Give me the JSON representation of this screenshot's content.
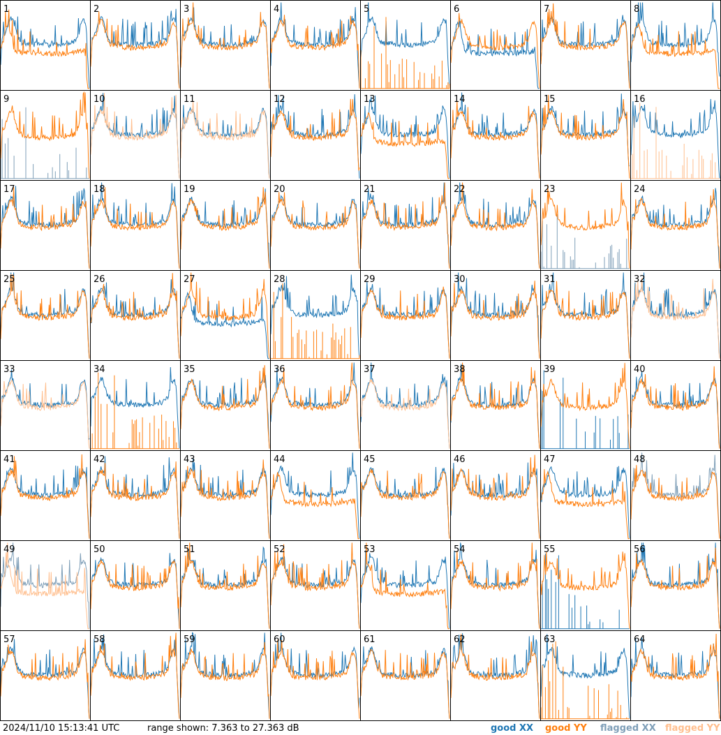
{
  "footer": {
    "timestamp": "2024/11/10 15:13:41 UTC",
    "range": "range shown: 7.363 to 27.363 dB"
  },
  "legend": [
    {
      "key": "good_xx",
      "prefix": "good",
      "pol": "XX",
      "color": "#1f77b4"
    },
    {
      "key": "good_yy",
      "prefix": "good",
      "pol": "YY",
      "color": "#ff7f0e"
    },
    {
      "key": "flagged_xx",
      "prefix": "flagged",
      "pol": "XX",
      "color": "#7f9fb8"
    },
    {
      "key": "flagged_yy",
      "prefix": "flagged",
      "pol": "YY",
      "color": "#ffbf8f"
    }
  ],
  "chart_data": {
    "type": "line",
    "grid_columns": 8,
    "grid_rows": 8,
    "y_range_db": [
      7.363,
      27.363
    ],
    "panel_statuses": [
      {
        "id": "1",
        "xx": "good",
        "yy": "good",
        "shape": "low_yy"
      },
      {
        "id": "2",
        "xx": "good",
        "yy": "good",
        "shape": "normal"
      },
      {
        "id": "3",
        "xx": "good",
        "yy": "good",
        "shape": "normal"
      },
      {
        "id": "4",
        "xx": "good",
        "yy": "good",
        "shape": "normal"
      },
      {
        "id": "5",
        "xx": "good",
        "yy": "good",
        "shape": "spiky_yy"
      },
      {
        "id": "6",
        "xx": "good",
        "yy": "good",
        "shape": "low_xx"
      },
      {
        "id": "7",
        "xx": "good",
        "yy": "good",
        "shape": "normal"
      },
      {
        "id": "8",
        "xx": "good",
        "yy": "good",
        "shape": "low_yy"
      },
      {
        "id": "9",
        "xx": "flagged",
        "yy": "good",
        "shape": "spiky_xx"
      },
      {
        "id": "10",
        "xx": "good",
        "yy": "flagged",
        "shape": "normal"
      },
      {
        "id": "11",
        "xx": "good",
        "yy": "flagged",
        "shape": "normal"
      },
      {
        "id": "12",
        "xx": "good",
        "yy": "good",
        "shape": "normal"
      },
      {
        "id": "13",
        "xx": "good",
        "yy": "good",
        "shape": "low_yy"
      },
      {
        "id": "14",
        "xx": "good",
        "yy": "good",
        "shape": "normal"
      },
      {
        "id": "15",
        "xx": "good",
        "yy": "good",
        "shape": "normal"
      },
      {
        "id": "16",
        "xx": "good",
        "yy": "flagged",
        "shape": "spiky_yy"
      },
      {
        "id": "17",
        "xx": "good",
        "yy": "good",
        "shape": "normal"
      },
      {
        "id": "18",
        "xx": "good",
        "yy": "good",
        "shape": "normal"
      },
      {
        "id": "19",
        "xx": "good",
        "yy": "good",
        "shape": "normal"
      },
      {
        "id": "20",
        "xx": "good",
        "yy": "good",
        "shape": "normal"
      },
      {
        "id": "21",
        "xx": "good",
        "yy": "good",
        "shape": "normal"
      },
      {
        "id": "22",
        "xx": "good",
        "yy": "good",
        "shape": "normal"
      },
      {
        "id": "23",
        "xx": "flagged",
        "yy": "good",
        "shape": "spiky_xx"
      },
      {
        "id": "24",
        "xx": "good",
        "yy": "good",
        "shape": "normal"
      },
      {
        "id": "25",
        "xx": "good",
        "yy": "good",
        "shape": "normal"
      },
      {
        "id": "26",
        "xx": "good",
        "yy": "good",
        "shape": "normal"
      },
      {
        "id": "27",
        "xx": "good",
        "yy": "good",
        "shape": "low_xx"
      },
      {
        "id": "28",
        "xx": "good",
        "yy": "good",
        "shape": "spiky_yy"
      },
      {
        "id": "29",
        "xx": "good",
        "yy": "good",
        "shape": "normal"
      },
      {
        "id": "30",
        "xx": "good",
        "yy": "good",
        "shape": "normal"
      },
      {
        "id": "31",
        "xx": "good",
        "yy": "good",
        "shape": "normal"
      },
      {
        "id": "32",
        "xx": "good",
        "yy": "flagged",
        "shape": "normal"
      },
      {
        "id": "33",
        "xx": "good",
        "yy": "flagged",
        "shape": "normal"
      },
      {
        "id": "34",
        "xx": "good",
        "yy": "good",
        "shape": "spiky_yy"
      },
      {
        "id": "35",
        "xx": "good",
        "yy": "good",
        "shape": "normal"
      },
      {
        "id": "36",
        "xx": "good",
        "yy": "good",
        "shape": "normal"
      },
      {
        "id": "37",
        "xx": "good",
        "yy": "flagged",
        "shape": "normal"
      },
      {
        "id": "38",
        "xx": "good",
        "yy": "good",
        "shape": "normal"
      },
      {
        "id": "39",
        "xx": "good",
        "yy": "good",
        "shape": "spiky_xx"
      },
      {
        "id": "40",
        "xx": "good",
        "yy": "good",
        "shape": "normal"
      },
      {
        "id": "41",
        "xx": "good",
        "yy": "good",
        "shape": "normal"
      },
      {
        "id": "42",
        "xx": "good",
        "yy": "good",
        "shape": "normal"
      },
      {
        "id": "43",
        "xx": "good",
        "yy": "good",
        "shape": "normal"
      },
      {
        "id": "44",
        "xx": "good",
        "yy": "good",
        "shape": "low_yy"
      },
      {
        "id": "45",
        "xx": "good",
        "yy": "good",
        "shape": "normal"
      },
      {
        "id": "46",
        "xx": "good",
        "yy": "good",
        "shape": "normal"
      },
      {
        "id": "47",
        "xx": "good",
        "yy": "good",
        "shape": "low_yy"
      },
      {
        "id": "48",
        "xx": "flagged",
        "yy": "good",
        "shape": "normal"
      },
      {
        "id": "49",
        "xx": "flagged",
        "yy": "flagged",
        "shape": "low_yy"
      },
      {
        "id": "50",
        "xx": "good",
        "yy": "good",
        "shape": "normal"
      },
      {
        "id": "51",
        "xx": "good",
        "yy": "good",
        "shape": "normal"
      },
      {
        "id": "52",
        "xx": "good",
        "yy": "good",
        "shape": "normal"
      },
      {
        "id": "53",
        "xx": "good",
        "yy": "good",
        "shape": "low_yy"
      },
      {
        "id": "54",
        "xx": "good",
        "yy": "good",
        "shape": "normal"
      },
      {
        "id": "55",
        "xx": "good",
        "yy": "good",
        "shape": "spiky_xx"
      },
      {
        "id": "56",
        "xx": "good",
        "yy": "good",
        "shape": "normal"
      },
      {
        "id": "57",
        "xx": "good",
        "yy": "good",
        "shape": "normal"
      },
      {
        "id": "58",
        "xx": "good",
        "yy": "good",
        "shape": "normal"
      },
      {
        "id": "59",
        "xx": "good",
        "yy": "good",
        "shape": "normal"
      },
      {
        "id": "60",
        "xx": "good",
        "yy": "good",
        "shape": "normal"
      },
      {
        "id": "61",
        "xx": "good",
        "yy": "good",
        "shape": "normal"
      },
      {
        "id": "62",
        "xx": "good",
        "yy": "good",
        "shape": "normal"
      },
      {
        "id": "63",
        "xx": "good",
        "yy": "good",
        "shape": "spiky_yy"
      },
      {
        "id": "64",
        "xx": "good",
        "yy": "good",
        "shape": "normal"
      }
    ]
  }
}
